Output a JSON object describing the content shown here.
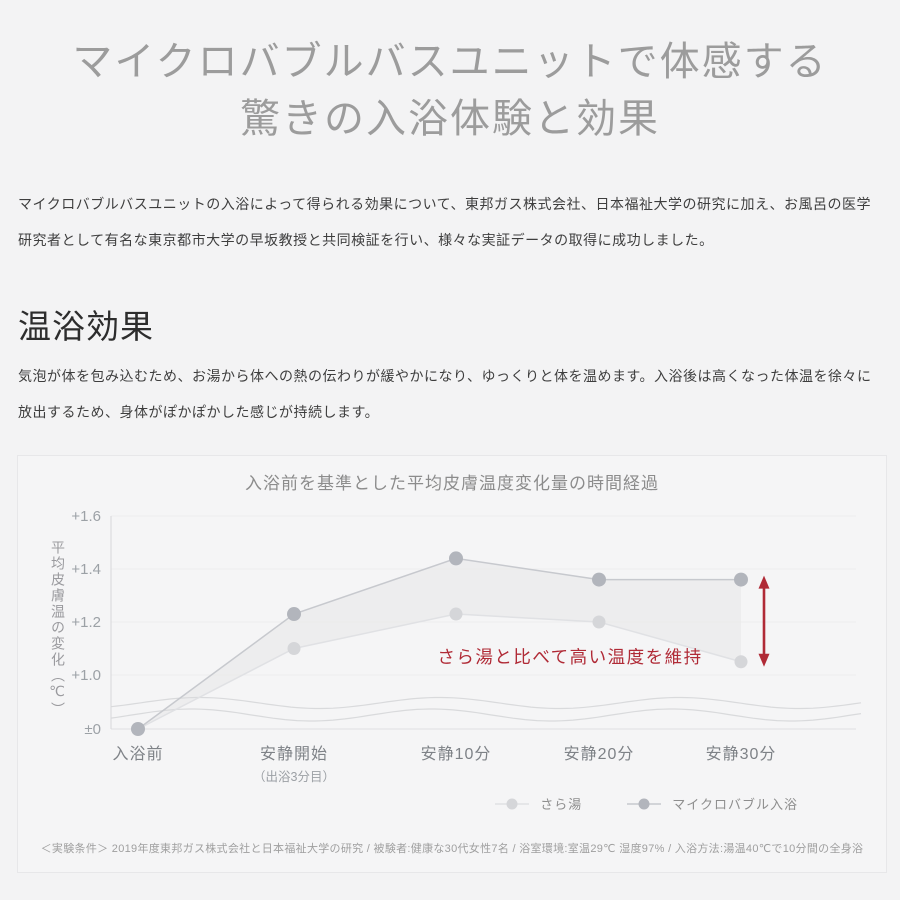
{
  "page": {
    "title_line1": "マイクロバブルバスユニットで体感する",
    "title_line2": "驚きの入浴体験と効果",
    "intro": "マイクロバブルバスユニットの入浴によって得られる効果について、東邦ガス株式会社、日本福祉大学の研究に加え、お風呂の医学研究者として有名な東京都市大学の早坂教授と共同検証を行い、様々な実証データの取得に成功しました。",
    "section": {
      "heading": "温浴効果",
      "body": "気泡が体を包み込むため、お湯から体への熱の伝わりが緩やかになり、ゆっくりと体を温めます。入浴後は高くなった体温を徐々に放出するため、身体がぽかぽかした感じが持続します。"
    }
  },
  "chart_data": {
    "type": "line",
    "title": "入浴前を基準とした平均皮膚温度変化量の時間経過",
    "ylabel": "平均皮膚温の変化（℃）",
    "xlabel": "",
    "categories": [
      "入浴前",
      "安静開始",
      "安静10分",
      "安静20分",
      "安静30分"
    ],
    "category_sublabels": [
      "",
      "（出浴3分目）",
      "",
      "",
      ""
    ],
    "y_ticks": [
      "+1.6",
      "+1.4",
      "+1.2",
      "+1.0",
      "±0"
    ],
    "y_tick_values": [
      1.6,
      1.4,
      1.2,
      1.0,
      0
    ],
    "axis_break": true,
    "grid": true,
    "legend_position": "bottom-right",
    "series": [
      {
        "name": "さら湯",
        "values": [
          0,
          1.1,
          1.23,
          1.2,
          1.05
        ],
        "dot_color": "#d5d6d9",
        "line_color": "#e0e1e4"
      },
      {
        "name": "マイクロバブル入浴",
        "values": [
          0,
          1.23,
          1.44,
          1.36,
          1.36
        ],
        "dot_color": "#b2b5bc",
        "line_color": "#c7c9ce"
      }
    ],
    "band_fill": "#e7e8ea",
    "annotation": {
      "text": "さら湯と比べて高い温度を維持",
      "color": "#b02a36",
      "arrow": "vertical-double-headed"
    }
  },
  "footer": {
    "conditions": "＜実験条件＞ 2019年度東邦ガス株式会社と日本福祉大学の研究 / 被験者:健康な30代女性7名 / 浴室環境:室温29℃ 湿度97% / 入浴方法:湯温40℃で10分間の全身浴"
  }
}
